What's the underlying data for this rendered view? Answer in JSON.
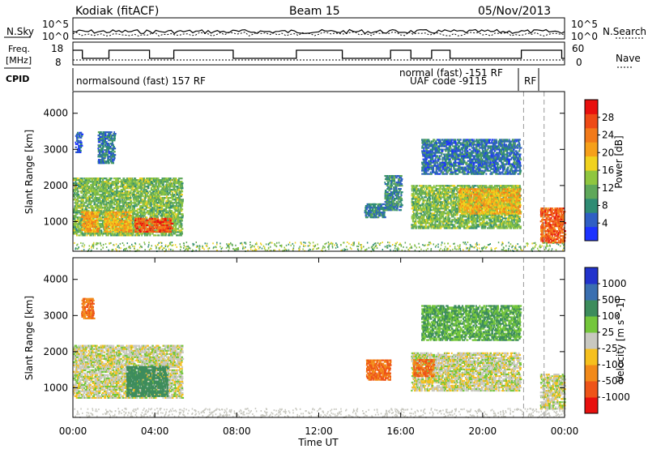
{
  "header": {
    "radar": "Kodiak (fitACF)",
    "beam": "Beam 15",
    "date": "05/Nov/2013"
  },
  "top_panel": {
    "left_label": "N.Sky",
    "right_label": "N.Search",
    "left_ticks": [
      "10^5",
      "10^0"
    ],
    "right_ticks": [
      "10^5",
      "10^0"
    ]
  },
  "freq_panel": {
    "label_line1": "Freq.",
    "label_line2": "[MHz]",
    "left_ticks": [
      "18",
      "8"
    ],
    "right_ticks": [
      "60",
      "0"
    ],
    "right_label": "Nave"
  },
  "cpid_panel": {
    "label": "CPID",
    "segments": [
      "normalsound (fast) 157 RF",
      "normal (fast) -151 RF",
      "UAF code -9115",
      "RF"
    ]
  },
  "x_axis": {
    "label": "Time UT",
    "ticks": [
      "00:00",
      "04:00",
      "08:00",
      "12:00",
      "16:00",
      "20:00",
      "00:00"
    ]
  },
  "chart_data": [
    {
      "type": "heatmap",
      "title": "",
      "ylabel": "Slant Range [km]",
      "xlabel": "Time UT",
      "y_ticks": [
        "1000",
        "2000",
        "3000",
        "4000"
      ],
      "ylim": [
        180,
        4600
      ],
      "xlim_hours": [
        0,
        24
      ],
      "colorbar": {
        "label": "Power [dB]",
        "ticks": [
          "4",
          "8",
          "12",
          "16",
          "20",
          "24",
          "28"
        ],
        "colors": [
          "#1c33ff",
          "#2f5fc4",
          "#2f8c74",
          "#5fa85a",
          "#8fc63f",
          "#f0d21e",
          "#f6a01a",
          "#f27a1a",
          "#ee4a16",
          "#e8100e"
        ]
      },
      "regions": [
        {
          "t0": 0.1,
          "t1": 0.4,
          "r0": 2900,
          "r1": 3500,
          "v": 6
        },
        {
          "t0": 0.0,
          "t1": 5.3,
          "r0": 600,
          "r1": 2200,
          "v": 14
        },
        {
          "t0": 0.4,
          "t1": 1.2,
          "r0": 700,
          "r1": 1300,
          "v": 22
        },
        {
          "t0": 1.5,
          "t1": 2.8,
          "r0": 700,
          "r1": 1300,
          "v": 20
        },
        {
          "t0": 3.0,
          "t1": 4.8,
          "r0": 700,
          "r1": 1100,
          "v": 27
        },
        {
          "t0": 1.2,
          "t1": 2.0,
          "r0": 2600,
          "r1": 3500,
          "v": 8
        },
        {
          "t0": 14.2,
          "t1": 15.2,
          "r0": 1100,
          "r1": 1500,
          "v": 9
        },
        {
          "t0": 15.2,
          "t1": 16.0,
          "r0": 1300,
          "r1": 2300,
          "v": 10
        },
        {
          "t0": 16.5,
          "t1": 21.8,
          "r0": 800,
          "r1": 2000,
          "v": 14
        },
        {
          "t0": 18.8,
          "t1": 21.8,
          "r0": 1200,
          "r1": 1900,
          "v": 20
        },
        {
          "t0": 17.0,
          "t1": 21.8,
          "r0": 2300,
          "r1": 3300,
          "v": 8
        },
        {
          "t0": 22.8,
          "t1": 24.0,
          "r0": 400,
          "r1": 1400,
          "v": 26
        }
      ]
    },
    {
      "type": "heatmap",
      "title": "",
      "ylabel": "Slant Range [km]",
      "xlabel": "Time UT",
      "y_ticks": [
        "1000",
        "2000",
        "3000",
        "4000"
      ],
      "ylim": [
        180,
        4600
      ],
      "xlim_hours": [
        0,
        24
      ],
      "colorbar": {
        "label": "Velocity [m s^-1]",
        "ticks": [
          "1000",
          "500",
          "100",
          "25",
          "-25",
          "-100",
          "-500",
          "-1000"
        ],
        "colors": [
          "#2233cc",
          "#3a6fb0",
          "#3d8c5c",
          "#74c63b",
          "#c8c8c0",
          "#f6c01e",
          "#f28a1a",
          "#ee5418",
          "#e8100e"
        ]
      },
      "regions": [
        {
          "t0": 0.0,
          "t1": 5.3,
          "r0": 700,
          "r1": 2200,
          "v": 0
        },
        {
          "t0": 2.6,
          "t1": 4.6,
          "r0": 750,
          "r1": 1600,
          "v": 150
        },
        {
          "t0": 0.4,
          "t1": 1.0,
          "r0": 2900,
          "r1": 3500,
          "v": -300
        },
        {
          "t0": 14.3,
          "t1": 15.5,
          "r0": 1200,
          "r1": 1800,
          "v": -300
        },
        {
          "t0": 16.5,
          "t1": 21.8,
          "r0": 900,
          "r1": 2000,
          "v": 0
        },
        {
          "t0": 17.0,
          "t1": 21.8,
          "r0": 2300,
          "r1": 3300,
          "v": 60
        },
        {
          "t0": 16.6,
          "t1": 17.6,
          "r0": 1300,
          "r1": 1800,
          "v": -300
        },
        {
          "t0": 22.8,
          "t1": 24.0,
          "r0": 400,
          "r1": 1400,
          "v": 0
        }
      ]
    }
  ]
}
